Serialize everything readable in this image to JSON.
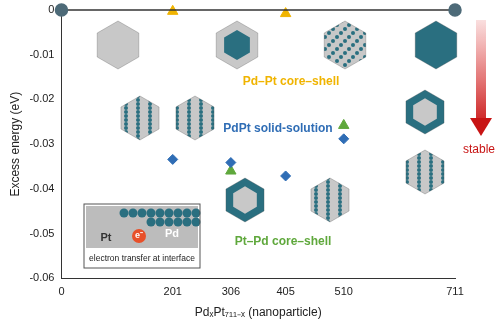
{
  "chart_data": {
    "type": "scatter",
    "x_label": "PdₓPt₇₁₁₋ₓ (nanoparticle)",
    "y_label": "Excess energy (eV)",
    "xlim": [
      0,
      711
    ],
    "xticks": [
      0,
      201,
      306,
      405,
      510,
      711
    ],
    "ylim": [
      -0.06,
      0
    ],
    "yticks": [
      -0.06,
      -0.05,
      -0.04,
      -0.03,
      -0.02,
      -0.01,
      0
    ],
    "grid": false,
    "series": [
      {
        "color": "#4d6a78",
        "marker": "circle",
        "line_style": "solid",
        "x": [
          0,
          711
        ],
        "values": [
          0,
          0
        ]
      },
      {
        "name": "Pd–Pt core–shell",
        "color": "#f0b400",
        "marker": "triangle",
        "line_style": "none",
        "x": [
          201,
          405
        ],
        "values": [
          -0.0003,
          -0.0008
        ]
      },
      {
        "name": "PdPt solid-solution",
        "color": "#2f6db5",
        "marker": "diamond",
        "line_style": "none",
        "x": [
          201,
          306,
          405,
          510
        ],
        "values": [
          -0.0334,
          -0.0341,
          -0.0371,
          -0.0288
        ]
      },
      {
        "name": "Pt–Pd core–shell",
        "color": "#5fa83c",
        "marker": "triangle",
        "line_style": "none",
        "x": [
          306,
          510
        ],
        "values": [
          -0.036,
          -0.0258
        ]
      }
    ],
    "annotations": [
      "stable",
      "electron transfer at interface",
      "Pd",
      "Pt",
      "e⁻"
    ]
  }
}
